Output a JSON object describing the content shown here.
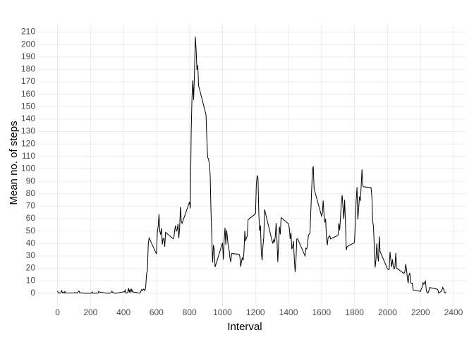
{
  "chart_data": {
    "type": "line",
    "xlabel": "Interval",
    "ylabel": "Mean no. of steps",
    "x": [
      0,
      5,
      10,
      15,
      20,
      25,
      30,
      35,
      40,
      45,
      50,
      55,
      100,
      105,
      110,
      115,
      120,
      125,
      130,
      135,
      140,
      145,
      150,
      155,
      200,
      205,
      210,
      215,
      220,
      225,
      230,
      235,
      240,
      245,
      250,
      255,
      300,
      305,
      310,
      315,
      320,
      325,
      330,
      335,
      340,
      345,
      350,
      355,
      400,
      405,
      410,
      415,
      420,
      425,
      430,
      435,
      440,
      445,
      450,
      455,
      500,
      505,
      510,
      515,
      520,
      525,
      530,
      535,
      540,
      545,
      550,
      555,
      600,
      605,
      610,
      615,
      620,
      625,
      630,
      635,
      640,
      645,
      650,
      655,
      700,
      705,
      710,
      715,
      720,
      725,
      730,
      735,
      740,
      745,
      750,
      755,
      800,
      805,
      810,
      815,
      820,
      825,
      830,
      835,
      840,
      845,
      850,
      855,
      900,
      905,
      910,
      915,
      920,
      925,
      930,
      935,
      940,
      945,
      950,
      955,
      1000,
      1005,
      1010,
      1015,
      1020,
      1025,
      1030,
      1035,
      1040,
      1045,
      1050,
      1055,
      1100,
      1105,
      1110,
      1115,
      1120,
      1125,
      1130,
      1135,
      1140,
      1145,
      1150,
      1155,
      1200,
      1205,
      1210,
      1215,
      1220,
      1225,
      1230,
      1235,
      1240,
      1245,
      1250,
      1255,
      1300,
      1305,
      1310,
      1315,
      1320,
      1325,
      1330,
      1335,
      1340,
      1345,
      1350,
      1355,
      1400,
      1405,
      1410,
      1415,
      1420,
      1425,
      1430,
      1435,
      1440,
      1445,
      1450,
      1455,
      1500,
      1505,
      1510,
      1515,
      1520,
      1525,
      1530,
      1535,
      1540,
      1545,
      1550,
      1555,
      1600,
      1605,
      1610,
      1615,
      1620,
      1625,
      1630,
      1635,
      1640,
      1645,
      1650,
      1655,
      1700,
      1705,
      1710,
      1715,
      1720,
      1725,
      1730,
      1735,
      1740,
      1745,
      1750,
      1755,
      1800,
      1805,
      1810,
      1815,
      1820,
      1825,
      1830,
      1835,
      1840,
      1845,
      1850,
      1855,
      1900,
      1905,
      1910,
      1915,
      1920,
      1925,
      1930,
      1935,
      1940,
      1945,
      1950,
      1955,
      2000,
      2005,
      2010,
      2015,
      2020,
      2025,
      2030,
      2035,
      2040,
      2045,
      2050,
      2055,
      2100,
      2105,
      2110,
      2115,
      2120,
      2125,
      2130,
      2135,
      2140,
      2145,
      2150,
      2155,
      2200,
      2205,
      2210,
      2215,
      2220,
      2225,
      2230,
      2235,
      2240,
      2245,
      2250,
      2255,
      2300,
      2305,
      2310,
      2315,
      2320,
      2325,
      2330,
      2335,
      2340,
      2345,
      2350,
      2355
    ],
    "values": [
      1.7,
      0.3,
      0.1,
      0.2,
      0.1,
      2.1,
      0.5,
      0.9,
      0,
      1.5,
      0.3,
      0.1,
      0.3,
      0.7,
      0.2,
      0.3,
      0,
      1.1,
      1.8,
      0.2,
      0.2,
      0.4,
      0.3,
      0,
      0,
      0,
      1.1,
      0,
      0,
      0.1,
      0,
      0.2,
      0,
      0,
      1.5,
      0.9,
      0,
      0,
      0,
      0,
      0.2,
      0.6,
      1.6,
      0.6,
      0.5,
      0.1,
      0,
      0,
      1.2,
      0.9,
      2.6,
      0,
      0.3,
      0.4,
      4.1,
      0.7,
      3.5,
      0.8,
      3.1,
      1.1,
      0,
      1.6,
      3,
      2.2,
      3.3,
      3,
      2.1,
      6.1,
      16,
      18.3,
      39.5,
      44.5,
      31.5,
      49.3,
      53.8,
      63.5,
      50,
      47.1,
      52.2,
      39.3,
      44,
      44.2,
      37.4,
      49,
      43.8,
      44.4,
      50.5,
      54.5,
      49.9,
      51,
      55.7,
      44.3,
      52.3,
      69.5,
      57.8,
      56.2,
      73.4,
      68.2,
      129.4,
      157.5,
      171.2,
      155.4,
      177.3,
      206.2,
      195.9,
      179.6,
      183.4,
      167,
      143.5,
      124,
      109.1,
      108.1,
      103.7,
      96,
      66.2,
      45.2,
      24.8,
      38.8,
      35,
      21.1,
      40.6,
      27,
      42.4,
      52.7,
      38.9,
      50.8,
      44.3,
      37.4,
      34.7,
      28.3,
      25.1,
      31.9,
      31.4,
      29.7,
      21.3,
      25.5,
      28.4,
      26.5,
      33.4,
      50,
      42,
      44.6,
      46,
      59.2,
      63.9,
      87.7,
      94.8,
      92.8,
      63.4,
      50.2,
      54.5,
      32.4,
      26.5,
      37.7,
      45.1,
      67.3,
      42.3,
      39.9,
      43.3,
      41,
      46.2,
      56.4,
      42.8,
      25.1,
      40,
      53.5,
      47.3,
      60.8,
      55.8,
      52,
      43.6,
      48.7,
      35.5,
      37.5,
      41.8,
      27.5,
      17.1,
      26.1,
      43.6,
      43.8,
      30,
      36.1,
      35.5,
      38.8,
      46,
      47.8,
      48.1,
      65.3,
      82.9,
      98.7,
      102.1,
      84,
      62.1,
      64.1,
      74.5,
      63.2,
      56.9,
      59.8,
      43.9,
      38.6,
      44.7,
      45.5,
      46.2,
      43.7,
      46.6,
      56.3,
      50.7,
      61.2,
      72.7,
      78.9,
      68.9,
      59.7,
      75.1,
      56.5,
      34.8,
      37.5,
      40.7,
      58,
      74.7,
      85.3,
      59.3,
      67.8,
      77.7,
      74.2,
      85.3,
      99.5,
      86.6,
      85.6,
      84.9,
      77.8,
      58,
      53.4,
      36.3,
      20.7,
      27.4,
      40,
      30.2,
      25.5,
      45.7,
      33.5,
      19.6,
      19,
      19.3,
      33.3,
      26.8,
      21.2,
      27.3,
      21.3,
      19.5,
      21.3,
      32.3,
      20.2,
      15.9,
      17.2,
      23.5,
      19.2,
      12.5,
      8,
      14.7,
      16.3,
      8.7,
      7.8,
      8.1,
      2.6,
      1.5,
      3.7,
      4.8,
      8.5,
      7.1,
      8.7,
      9.8,
      2.2,
      0.3,
      0.1,
      1.6,
      4.6,
      3.3,
      2.8,
      0,
      0.8,
      1,
      1.6,
      2.6,
      4.7,
      3.3,
      0.6,
      0.2,
      1.1
    ],
    "color": "#000000",
    "xlim": [
      -117.75,
      2472.75
    ],
    "xticks": [
      0,
      200,
      400,
      600,
      800,
      1000,
      1200,
      1400,
      1600,
      1800,
      2000,
      2200,
      2400
    ],
    "ylim": [
      -10.3,
      216.5
    ],
    "yticks": [
      0,
      10,
      20,
      30,
      40,
      50,
      60,
      70,
      80,
      90,
      100,
      110,
      120,
      130,
      140,
      150,
      160,
      170,
      180,
      190,
      200,
      210
    ],
    "grid": true
  }
}
